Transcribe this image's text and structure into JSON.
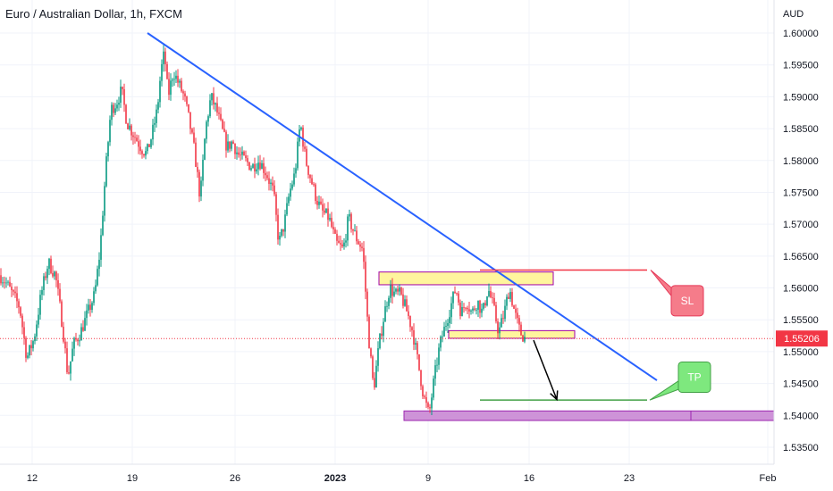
{
  "chart_data": {
    "type": "candlestick",
    "title": "Euro / Australian Dollar, 1h, FXCM",
    "y_unit": "AUD",
    "ylim": [
      1.5314,
      1.6034
    ],
    "y_ticks": [
      "1.60000",
      "1.59500",
      "1.59000",
      "1.58500",
      "1.58000",
      "1.57500",
      "1.57000",
      "1.56500",
      "1.56000",
      "1.55500",
      "1.55000",
      "1.54500",
      "1.54000",
      "1.53500"
    ],
    "x_ticks": [
      "12",
      "19",
      "26",
      "2023",
      "9",
      "16",
      "23",
      "Feb"
    ],
    "current_price": {
      "value": 1.55206,
      "label": "1.55206",
      "color": "#f23645"
    },
    "colors": {
      "up": "#089981",
      "down": "#f23645",
      "trendline": "#2962ff"
    },
    "price_path": [
      [
        0,
        1.562
      ],
      [
        6,
        1.561
      ],
      [
        14,
        1.559
      ],
      [
        22,
        1.557
      ],
      [
        30,
        1.549
      ],
      [
        38,
        1.552
      ],
      [
        46,
        1.559
      ],
      [
        54,
        1.564
      ],
      [
        62,
        1.562
      ],
      [
        70,
        1.554
      ],
      [
        76,
        1.546
      ],
      [
        82,
        1.551
      ],
      [
        90,
        1.553
      ],
      [
        98,
        1.556
      ],
      [
        106,
        1.559
      ],
      [
        112,
        1.566
      ],
      [
        118,
        1.578
      ],
      [
        124,
        1.588
      ],
      [
        130,
        1.589
      ],
      [
        136,
        1.591
      ],
      [
        142,
        1.586
      ],
      [
        150,
        1.584
      ],
      [
        158,
        1.582
      ],
      [
        164,
        1.581
      ],
      [
        170,
        1.584
      ],
      [
        176,
        1.588
      ],
      [
        180,
        1.594
      ],
      [
        184,
        1.597
      ],
      [
        188,
        1.59
      ],
      [
        194,
        1.594
      ],
      [
        200,
        1.592
      ],
      [
        206,
        1.59
      ],
      [
        212,
        1.586
      ],
      [
        218,
        1.581
      ],
      [
        224,
        1.574
      ],
      [
        230,
        1.585
      ],
      [
        236,
        1.59
      ],
      [
        242,
        1.588
      ],
      [
        248,
        1.585
      ],
      [
        254,
        1.582
      ],
      [
        260,
        1.583
      ],
      [
        266,
        1.581
      ],
      [
        274,
        1.58
      ],
      [
        282,
        1.579
      ],
      [
        290,
        1.58
      ],
      [
        298,
        1.578
      ],
      [
        306,
        1.575
      ],
      [
        312,
        1.567
      ],
      [
        318,
        1.57
      ],
      [
        324,
        1.575
      ],
      [
        330,
        1.578
      ],
      [
        336,
        1.586
      ],
      [
        342,
        1.58
      ],
      [
        348,
        1.577
      ],
      [
        354,
        1.574
      ],
      [
        360,
        1.572
      ],
      [
        368,
        1.571
      ],
      [
        376,
        1.567
      ],
      [
        384,
        1.566
      ],
      [
        390,
        1.571
      ],
      [
        398,
        1.568
      ],
      [
        406,
        1.566
      ],
      [
        412,
        1.553
      ],
      [
        418,
        1.544
      ],
      [
        424,
        1.551
      ],
      [
        430,
        1.556
      ],
      [
        436,
        1.56
      ],
      [
        442,
        1.559
      ],
      [
        448,
        1.559
      ],
      [
        456,
        1.556
      ],
      [
        462,
        1.553
      ],
      [
        468,
        1.548
      ],
      [
        474,
        1.543
      ],
      [
        480,
        1.54
      ],
      [
        486,
        1.546
      ],
      [
        492,
        1.551
      ],
      [
        498,
        1.554
      ],
      [
        504,
        1.557
      ],
      [
        510,
        1.56
      ],
      [
        516,
        1.556
      ],
      [
        522,
        1.558
      ],
      [
        528,
        1.556
      ],
      [
        534,
        1.558
      ],
      [
        540,
        1.556
      ],
      [
        546,
        1.56
      ],
      [
        552,
        1.557
      ],
      [
        558,
        1.553
      ],
      [
        564,
        1.556
      ],
      [
        570,
        1.56
      ],
      [
        576,
        1.556
      ],
      [
        582,
        1.553
      ],
      [
        588,
        1.552
      ]
    ],
    "trendline": {
      "start": [
        "Dec 19",
        1.6
      ],
      "end": [
        "Jan 24",
        1.5455
      ]
    },
    "boxes": [
      {
        "name": "resistance-zone",
        "x": [
          424,
          619
        ],
        "y": [
          1.5605,
          1.5625
        ],
        "fill": "#fff59d",
        "stroke": "#a000a8"
      },
      {
        "name": "entry-zone",
        "x": [
          502,
          643
        ],
        "y": [
          1.5521,
          1.5533
        ],
        "fill": "#fff59d",
        "stroke": "#a000a8"
      },
      {
        "name": "support-zone",
        "x": [
          452,
          866
        ],
        "y": [
          1.5392,
          1.5407
        ],
        "fill": "#ce93d8",
        "stroke": "#9c27b0"
      }
    ],
    "lines": [
      {
        "name": "stop-loss-line",
        "x": [
          537,
          724
        ],
        "y": 1.5628,
        "color": "#f23645"
      },
      {
        "name": "take-profit-line",
        "x": [
          537,
          724
        ],
        "y": 1.5424,
        "color": "#43a047"
      }
    ],
    "callouts": [
      {
        "name": "sl-callout",
        "label": "SL",
        "fill": "#f57c8a",
        "stroke": "#e53958",
        "x": 751,
        "y": 1.558,
        "tail": [
          728,
          1.5628
        ]
      },
      {
        "name": "tp-callout",
        "label": "TP",
        "fill": "#7ee87e",
        "stroke": "#43a047",
        "x": 759,
        "y": 1.546,
        "tail": [
          727,
          1.5424
        ]
      }
    ],
    "arrow": {
      "from": [
        597,
        1.5518
      ],
      "to": [
        623,
        1.5425
      ],
      "color": "#000000"
    }
  }
}
